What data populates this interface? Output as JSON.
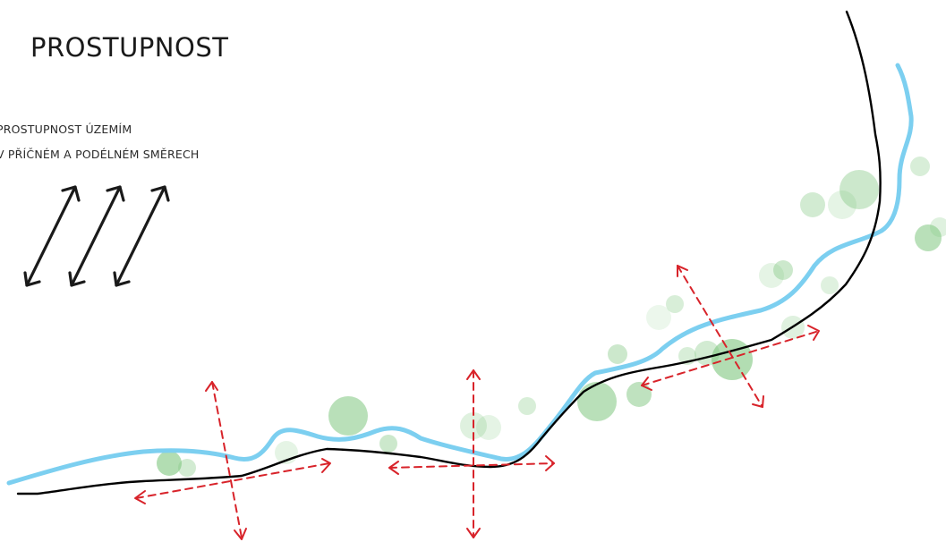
{
  "title": "PROSTUPNOST",
  "legend": {
    "line1": "PROSTUPNOST ÚZEMÍM",
    "line2": "V PŘÍČNÉM A PODÉLNÉM SMĚRECH",
    "arrow_icon": "double-headed-diagonal-arrows"
  },
  "colors": {
    "river": "#7ccff0",
    "road": "#000000",
    "arrows": "#d8232a",
    "vegetation": "#7fc67f"
  }
}
